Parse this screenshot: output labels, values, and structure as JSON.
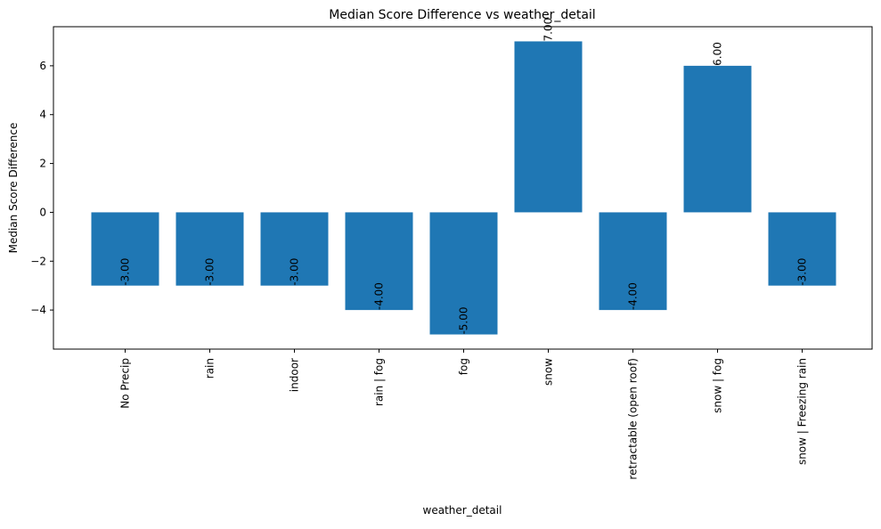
{
  "chart_data": {
    "type": "bar",
    "title": "Median Score Difference vs weather_detail",
    "xlabel": "weather_detail",
    "ylabel": "Median Score Difference",
    "categories": [
      "No Precip",
      "rain",
      "indoor",
      "rain | fog",
      "fog",
      "snow",
      "retractable (open roof)",
      "snow | fog",
      "snow | Freezing rain"
    ],
    "values": [
      -3,
      -3,
      -3,
      -4,
      -5,
      7,
      -4,
      6,
      -3
    ],
    "value_labels": [
      "-3.00",
      "-3.00",
      "-3.00",
      "-4.00",
      "-5.00",
      "7.00",
      "-4.00",
      "6.00",
      "-3.00"
    ],
    "ylim": [
      -5.6,
      7.6
    ],
    "yticks": [
      -4,
      -2,
      0,
      2,
      4,
      6
    ],
    "ytick_labels": [
      "−4",
      "−2",
      "0",
      "2",
      "4",
      "6"
    ],
    "bar_color": "#1f77b4",
    "grid": false,
    "legend": false
  }
}
